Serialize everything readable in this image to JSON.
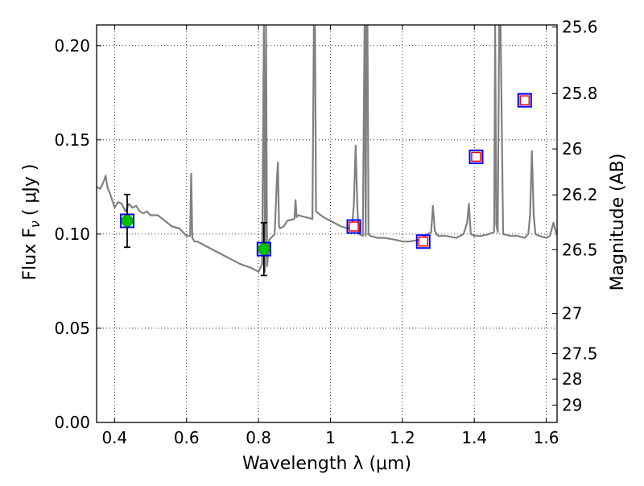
{
  "chart_data": {
    "type": "line",
    "xlabel": "Wavelength  λ (μm)",
    "ylabel": "Flux  F",
    "ylabel_sub": "ν",
    "ylabel_units": "( μJy )",
    "ylabel_right": "Magnitude (AB)",
    "xlim": [
      0.35,
      1.63
    ],
    "ylim": [
      0.0,
      0.211
    ],
    "grid": true,
    "x_ticks": [
      {
        "value": 0.4,
        "label": "0.4"
      },
      {
        "value": 0.6,
        "label": "0.6"
      },
      {
        "value": 0.8,
        "label": "0.8"
      },
      {
        "value": 1.0,
        "label": "1"
      },
      {
        "value": 1.2,
        "label": "1.2"
      },
      {
        "value": 1.4,
        "label": "1.4"
      },
      {
        "value": 1.6,
        "label": "1.6"
      }
    ],
    "y_ticks": [
      {
        "value": 0.0,
        "label": "0.00"
      },
      {
        "value": 0.05,
        "label": "0.05"
      },
      {
        "value": 0.1,
        "label": "0.10"
      },
      {
        "value": 0.15,
        "label": "0.15"
      },
      {
        "value": 0.2,
        "label": "0.20"
      }
    ],
    "right_ticks": [
      {
        "label": "25.6",
        "flux": 0.2099
      },
      {
        "label": "25.8",
        "flux": 0.1746
      },
      {
        "label": "26",
        "flux": 0.1452
      },
      {
        "label": "26.2",
        "flux": 0.1208
      },
      {
        "label": "26.5",
        "flux": 0.0917
      },
      {
        "label": "27",
        "flux": 0.0579
      },
      {
        "label": "27.5",
        "flux": 0.0365
      },
      {
        "label": "28",
        "flux": 0.023
      },
      {
        "label": "29",
        "flux": 0.0092
      }
    ],
    "series": [
      {
        "kind": "spectrum",
        "color": "#808080",
        "x": [
          0.35,
          0.36,
          0.37,
          0.375,
          0.38,
          0.39,
          0.4,
          0.41,
          0.42,
          0.43,
          0.44,
          0.45,
          0.46,
          0.47,
          0.48,
          0.49,
          0.5,
          0.52,
          0.54,
          0.56,
          0.58,
          0.6,
          0.61,
          0.613,
          0.616,
          0.619,
          0.622,
          0.63,
          0.65,
          0.67,
          0.7,
          0.72,
          0.75,
          0.78,
          0.8,
          0.81,
          0.815,
          0.818,
          0.821,
          0.824,
          0.83,
          0.845,
          0.851,
          0.854,
          0.857,
          0.86,
          0.87,
          0.88,
          0.9,
          0.903,
          0.906,
          0.91,
          0.93,
          0.95,
          0.954,
          0.957,
          0.96,
          0.98,
          1.0,
          1.03,
          1.05,
          1.06,
          1.065,
          1.07,
          1.075,
          1.08,
          1.09,
          1.095,
          1.098,
          1.1,
          1.103,
          1.106,
          1.11,
          1.13,
          1.15,
          1.18,
          1.2,
          1.22,
          1.25,
          1.27,
          1.28,
          1.285,
          1.29,
          1.295,
          1.3,
          1.32,
          1.35,
          1.37,
          1.38,
          1.385,
          1.39,
          1.4,
          1.42,
          1.44,
          1.455,
          1.458,
          1.461,
          1.465,
          1.469,
          1.473,
          1.48,
          1.5,
          1.52,
          1.54,
          1.55,
          1.555,
          1.56,
          1.565,
          1.57,
          1.58,
          1.6,
          1.61,
          1.62,
          1.63
        ],
        "y": [
          0.125,
          0.124,
          0.128,
          0.131,
          0.125,
          0.12,
          0.114,
          0.117,
          0.116,
          0.112,
          0.116,
          0.114,
          0.115,
          0.112,
          0.111,
          0.112,
          0.11,
          0.11,
          0.107,
          0.104,
          0.103,
          0.099,
          0.099,
          0.132,
          0.098,
          0.097,
          0.096,
          0.096,
          0.094,
          0.092,
          0.089,
          0.087,
          0.084,
          0.082,
          0.08,
          0.084,
          0.211,
          0.08,
          0.211,
          0.083,
          0.097,
          0.1,
          0.128,
          0.138,
          0.104,
          0.103,
          0.104,
          0.107,
          0.108,
          0.118,
          0.109,
          0.11,
          0.109,
          0.108,
          0.211,
          0.21,
          0.112,
          0.109,
          0.107,
          0.104,
          0.103,
          0.104,
          0.115,
          0.147,
          0.113,
          0.1,
          0.099,
          0.211,
          0.099,
          0.211,
          0.211,
          0.1,
          0.099,
          0.098,
          0.098,
          0.097,
          0.096,
          0.096,
          0.097,
          0.1,
          0.101,
          0.115,
          0.102,
          0.1,
          0.099,
          0.099,
          0.098,
          0.1,
          0.106,
          0.116,
          0.1,
          0.099,
          0.099,
          0.1,
          0.101,
          0.211,
          0.105,
          0.101,
          0.211,
          0.211,
          0.1,
          0.099,
          0.099,
          0.098,
          0.1,
          0.11,
          0.144,
          0.11,
          0.1,
          0.099,
          0.098,
          0.099,
          0.106,
          0.099
        ]
      },
      {
        "kind": "observed",
        "marker": "green-circle",
        "color": "#00c000",
        "x": [
          0.435,
          0.815
        ],
        "y": [
          0.107,
          0.092
        ],
        "yerr": [
          0.014,
          0.014
        ]
      },
      {
        "kind": "model-photometry",
        "marker": "blue-square",
        "color": "#0000ff",
        "x": [
          0.435,
          0.815,
          1.065,
          1.258,
          1.405,
          1.54
        ],
        "y": [
          0.107,
          0.092,
          0.104,
          0.096,
          0.141,
          0.171
        ]
      },
      {
        "kind": "upper-limit",
        "marker": "red-open-square",
        "color": "#ff0000",
        "x": [
          1.065,
          1.258,
          1.405,
          1.54
        ],
        "y": [
          0.104,
          0.096,
          0.141,
          0.171
        ]
      }
    ]
  }
}
